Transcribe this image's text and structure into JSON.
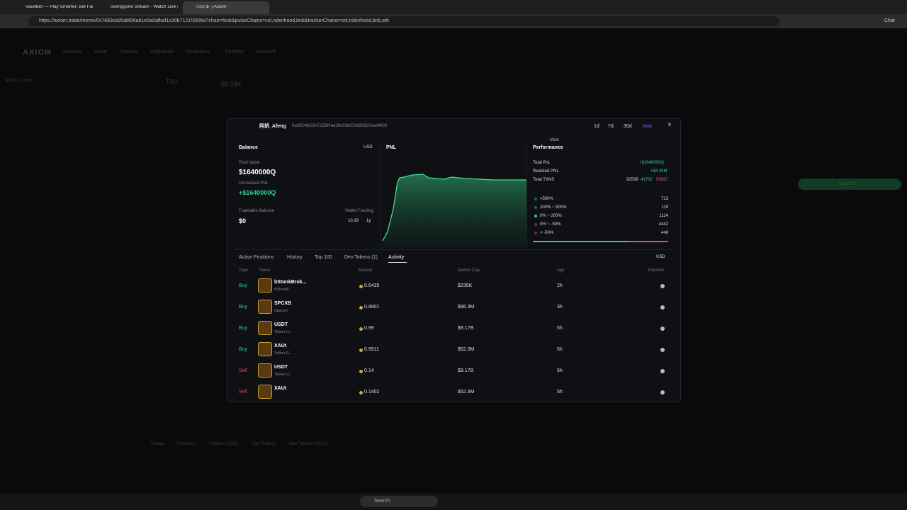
{
  "browser": {
    "tabs": [
      "VaultBet — Play Smarter, Bet Fair",
      "overlygone Stream - Watch Live o",
      "TSU $- | Axiom"
    ],
    "url": "https://axiom.trade/meme/0x7683ca95abf36ab1e5a0afbaf1c30b7121f3906a?chain=bnb&pulseChains=sol,robinhood,bnb&trackerChains=sol,robinhood,bnb,eth",
    "chat": "Chat"
  },
  "app": {
    "logo": "AXIOM",
    "nav": [
      "Discover",
      "Pulse",
      "Trackers",
      "Perpetuals",
      "Predictions",
      "Portfolio",
      "Rewards"
    ],
    "lobby": "quiso's Lobby",
    "token": "TSU",
    "price": "$3.24K",
    "bottom_tabs": [
      "Trades",
      "Positions",
      "Holders (325)",
      "Top Traders",
      "Dev Tokens (2411)"
    ],
    "buy": "Buy TSU"
  },
  "modal": {
    "wallet_name": "阿娇_Afeng",
    "address": "0xbf004bf1547259f4ae38c03b87d6985b0ced4903",
    "timeframes": [
      "1d",
      "7d",
      "30d",
      "Max"
    ],
    "tooltip": "Main",
    "balance": {
      "title": "Balance",
      "currency": "USD",
      "total_value_label": "Total Value",
      "total_value": "$1640000Q",
      "unrealized_label": "Unrealized PNL",
      "unrealized": "+$1640000Q",
      "tradeable_label": "Tradeable Balance",
      "tradeable": "$0",
      "funding_label": "Wallet Funding",
      "funding_amount": "10.39",
      "funding_age": "1y"
    },
    "pnl": {
      "title": "PNL"
    },
    "performance": {
      "title": "Performance",
      "total_pnl_label": "Total PnL",
      "total_pnl": "+$1640000Q",
      "realized_label": "Realized PNL",
      "realized": "+$4.39M",
      "txns_label": "Total TXNS",
      "txns_total": "92599",
      "txns_buy": "41702",
      "txns_sell": "50897",
      "buckets": [
        {
          "label": ">500%",
          "count": "713"
        },
        {
          "label": "200% ~ 500%",
          "count": "119"
        },
        {
          "label": "0% ~ 200%",
          "count": "1114"
        },
        {
          "label": "0% ~ -50%",
          "count": "4442"
        },
        {
          "label": "< -50%",
          "count": "448"
        }
      ]
    },
    "tabs": [
      "Active Positions",
      "History",
      "Top 100",
      "Dev Tokens (1)",
      "Activity"
    ],
    "currency": "USD",
    "table": {
      "headers": [
        "Type",
        "Token",
        "Amount",
        "Market Cap",
        "Age",
        "Explorer"
      ],
      "rows": [
        {
          "type": "Buy",
          "name": "bStonkBrok...",
          "sub": "bStonkB...",
          "amount": "0.6435",
          "mc": "$235K",
          "age": "2h"
        },
        {
          "type": "Buy",
          "name": "SPCXB",
          "sub": "SpaceX",
          "amount": "0.8901",
          "mc": "$96.3M",
          "age": "3h"
        },
        {
          "type": "Buy",
          "name": "USDT",
          "sub": "Tether U...",
          "amount": "0.99",
          "mc": "$9.17B",
          "age": "5h"
        },
        {
          "type": "Buy",
          "name": "XAUt",
          "sub": "Tether G...",
          "amount": "0.9911",
          "mc": "$52.3M",
          "age": "5h"
        },
        {
          "type": "Sell",
          "name": "USDT",
          "sub": "Tether U...",
          "amount": "0.14",
          "mc": "$9.17B",
          "age": "5h"
        },
        {
          "type": "Sell",
          "name": "XAUt",
          "amount": "0.1402",
          "mc": "$52.3M",
          "age": "5h"
        }
      ]
    }
  },
  "taskbar": {
    "search": "Search"
  }
}
